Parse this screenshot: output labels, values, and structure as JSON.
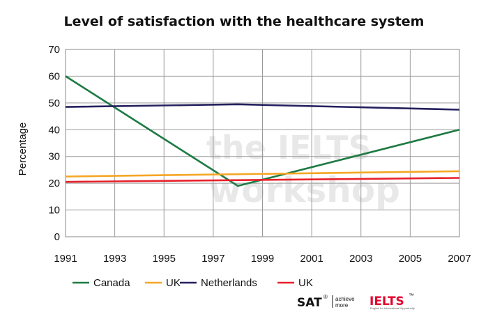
{
  "chart_data": {
    "type": "line",
    "title": "Level of satisfaction with the healthcare system",
    "ylabel": "Percentage",
    "xlabel": "",
    "xlim": [
      1991,
      2007
    ],
    "ylim": [
      0,
      70
    ],
    "x_ticks": [
      "1991",
      "1993",
      "1995",
      "1997",
      "1999",
      "2001",
      "2003",
      "2005",
      "2007"
    ],
    "y_ticks": [
      "0",
      "10",
      "20",
      "30",
      "40",
      "50",
      "60",
      "70"
    ],
    "grid": true,
    "legend_position": "bottom",
    "series": [
      {
        "name": "Canada",
        "color": "#1e7a43",
        "x": [
          1991,
          1998,
          2007
        ],
        "values": [
          60,
          19,
          40
        ]
      },
      {
        "name": "UK",
        "color": "#f5a623",
        "x": [
          1991,
          2007
        ],
        "values": [
          22.5,
          24.5
        ]
      },
      {
        "name": "Netherlands",
        "color": "#24205e",
        "x": [
          1991,
          1998,
          2007
        ],
        "values": [
          48.5,
          49.5,
          47.5
        ]
      },
      {
        "name": "UK",
        "color": "#e8202a",
        "x": [
          1991,
          2007
        ],
        "values": [
          20.5,
          22
        ]
      }
    ]
  },
  "watermark": {
    "line1": "the IELTS",
    "line2": "workshop"
  },
  "logos": {
    "sat": "SAT",
    "sat_reg": "®",
    "sat_tag1": "achieve",
    "sat_tag2": "more",
    "ielts": "IELTS",
    "ielts_tm": "™",
    "ielts_tag": "English for International Opportunity"
  }
}
